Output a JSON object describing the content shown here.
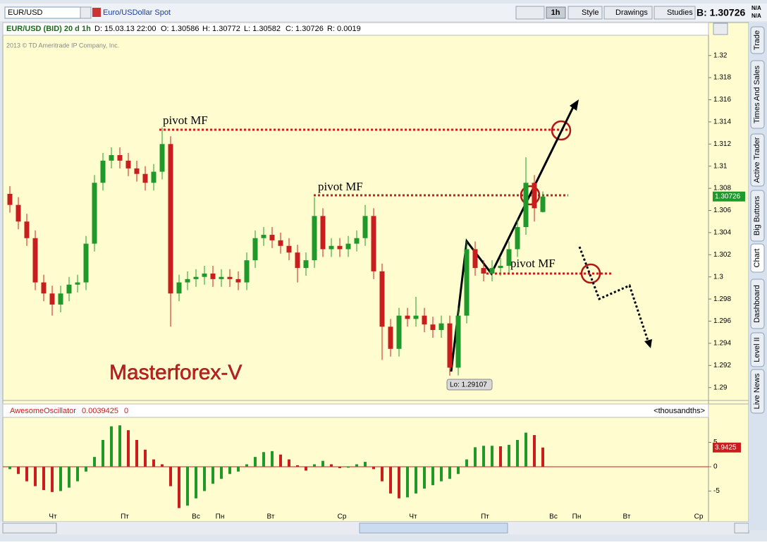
{
  "toolbar": {
    "symbol": "EUR/USD",
    "description": "Euro/USDollar Spot",
    "interval": "1h",
    "style": "Style",
    "drawings": "Drawings",
    "studies": "Studies",
    "bid": "B: 1.30726",
    "na1": "N/A",
    "na2": "N/A"
  },
  "info_bar": {
    "name": "EUR/USD (BID) 20 d 1h",
    "date": "D: 15.03.13 22:00",
    "open": "O: 1.30586",
    "high": "H: 1.30772",
    "low": "L: 1.30582",
    "close": "C: 1.30726",
    "range": "R: 0.0019"
  },
  "copyright": "2013 © TD Ameritrade IP Company, Inc.",
  "annotations": {
    "pivot1": "pivot MF",
    "pivot2": "pivot MF",
    "pivot3": "pivot MF",
    "watermark": "Masterforex-V",
    "low_label": "Lo: 1.29107"
  },
  "sidebar_tabs": [
    "Trade",
    "Times And Sales",
    "Active Trader",
    "Big Buttons",
    "Chart",
    "Dashboard",
    "Level II",
    "Live News"
  ],
  "x_axis_labels": [
    "Чт",
    "Пт",
    "Вс",
    "Пн",
    "Вт",
    "Ср",
    "Чт",
    "Пт",
    "Вс",
    "Пн",
    "Вт",
    "Ср"
  ],
  "chart_data": [
    {
      "type": "candlestick",
      "up_color": "#1f9a2a",
      "down_color": "#c81e1e",
      "open": [
        1.3075,
        1.3065,
        1.305,
        1.3035,
        1.2995,
        1.2985,
        1.2975,
        1.2985,
        1.2993,
        1.2995,
        1.303,
        1.3085,
        1.3105,
        1.311,
        1.3105,
        1.3098,
        1.3093,
        1.3085,
        1.3095,
        1.312,
        1.2985,
        1.2995,
        1.2998,
        1.3,
        1.3003,
        1.2998,
        1.3,
        1.2998,
        1.2995,
        1.3015,
        1.3035,
        1.3038,
        1.3033,
        1.3028,
        1.3022,
        1.3008,
        1.3015,
        1.3055,
        1.3025,
        1.3028,
        1.3025,
        1.303,
        1.3035,
        1.3055,
        1.3005,
        1.2955,
        1.2935,
        1.2965,
        1.2962,
        1.2965,
        1.2957,
        1.2952,
        1.2958,
        1.2918,
        1.2965,
        1.3025,
        1.3008,
        1.3003,
        1.3008,
        1.301,
        1.3025,
        1.3045,
        1.3085,
        1.30586
      ],
      "high": [
        1.3082,
        1.3072,
        1.3057,
        1.3042,
        1.3002,
        1.2992,
        1.2992,
        1.3,
        1.3002,
        1.3037,
        1.3092,
        1.3112,
        1.3117,
        1.3117,
        1.3112,
        1.3105,
        1.31,
        1.3102,
        1.3135,
        1.3127,
        1.3002,
        1.3005,
        1.3007,
        1.301,
        1.301,
        1.3007,
        1.3007,
        1.3005,
        1.3022,
        1.3042,
        1.3045,
        1.3045,
        1.304,
        1.3035,
        1.3029,
        1.3022,
        1.3072,
        1.3062,
        1.3035,
        1.3035,
        1.3037,
        1.3042,
        1.3065,
        1.3062,
        1.3012,
        1.2962,
        1.2972,
        1.2972,
        1.2982,
        1.2972,
        1.2964,
        1.2965,
        1.2965,
        1.2972,
        1.3032,
        1.3032,
        1.3015,
        1.3015,
        1.3017,
        1.3032,
        1.3052,
        1.3108,
        1.3092,
        1.30772
      ],
      "low": [
        1.3058,
        1.3043,
        1.3028,
        1.2988,
        1.2978,
        1.2965,
        1.2968,
        1.2978,
        1.2986,
        1.2988,
        1.3023,
        1.3078,
        1.3098,
        1.3098,
        1.3091,
        1.3086,
        1.3078,
        1.3078,
        1.3088,
        1.2955,
        1.2978,
        1.2988,
        1.2991,
        1.2993,
        1.2991,
        1.2991,
        1.2991,
        1.2988,
        1.2988,
        1.3008,
        1.3028,
        1.3026,
        1.3021,
        1.3015,
        1.2995,
        1.3001,
        1.3008,
        1.3018,
        1.3018,
        1.3018,
        1.3018,
        1.3023,
        1.3028,
        1.2998,
        1.2925,
        1.2928,
        1.2928,
        1.2955,
        1.2955,
        1.295,
        1.2945,
        1.2945,
        1.29107,
        1.2911,
        1.2958,
        1.3001,
        1.2996,
        1.2996,
        1.3001,
        1.3003,
        1.3018,
        1.3038,
        1.305,
        1.30582
      ],
      "close": [
        1.3065,
        1.305,
        1.3035,
        1.2995,
        1.2985,
        1.2975,
        1.2985,
        1.2993,
        1.2995,
        1.303,
        1.3085,
        1.3105,
        1.311,
        1.3105,
        1.3098,
        1.3093,
        1.3085,
        1.3095,
        1.312,
        1.2985,
        1.2995,
        1.2998,
        1.3,
        1.3003,
        1.2998,
        1.3,
        1.2998,
        1.2995,
        1.3015,
        1.3035,
        1.3038,
        1.3033,
        1.3028,
        1.3022,
        1.3008,
        1.3015,
        1.3055,
        1.3025,
        1.3028,
        1.3025,
        1.303,
        1.3035,
        1.3055,
        1.3005,
        1.2955,
        1.2935,
        1.2965,
        1.2962,
        1.2965,
        1.2957,
        1.2952,
        1.2958,
        1.2918,
        1.2965,
        1.3025,
        1.3008,
        1.3003,
        1.3008,
        1.301,
        1.3025,
        1.3045,
        1.3085,
        1.3062,
        1.30726
      ],
      "ylim": [
        1.2889,
        1.3217
      ],
      "yticks": [
        1.29,
        1.292,
        1.294,
        1.296,
        1.298,
        1.3,
        1.302,
        1.304,
        1.306,
        1.308,
        1.31,
        1.312,
        1.314,
        1.316,
        1.318,
        1.32
      ]
    },
    {
      "type": "bar",
      "title": "AwesomeOscillator",
      "value_text": "0.0039425",
      "param": "0",
      "unit": "<thousandths>",
      "up_color": "#1f9a2a",
      "down_color": "#c81e1e",
      "values": [
        -0.5,
        -1.5,
        -3,
        -4,
        -4.8,
        -5.2,
        -5,
        -4.3,
        -3,
        -1,
        2,
        5.5,
        8.3,
        8.5,
        7.5,
        5.5,
        3.5,
        1.5,
        0.5,
        -4,
        -8.5,
        -8,
        -6.5,
        -5,
        -3.5,
        -2.5,
        -1.5,
        -1,
        0.5,
        2,
        3,
        3.2,
        2.5,
        1.5,
        0.3,
        -0.8,
        0.5,
        1.2,
        0.5,
        -0.3,
        -0.2,
        0.5,
        1,
        -0.5,
        -3,
        -5.5,
        -6.5,
        -6.3,
        -5.5,
        -4.5,
        -3.8,
        -3,
        -2.5,
        -1.5,
        1.5,
        4,
        4.3,
        4.3,
        4.2,
        4.5,
        5.5,
        7,
        6.5,
        3.9425
      ],
      "ylim": [
        -8.7,
        9.7
      ],
      "yticks": [
        -5,
        0,
        5
      ]
    }
  ]
}
